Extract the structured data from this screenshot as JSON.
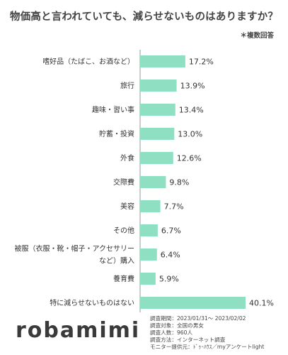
{
  "header": {
    "title": "物価高と言われていても、減らせないものはありますか？",
    "note": "＊複数回答"
  },
  "chart_data": {
    "type": "bar",
    "orientation": "horizontal",
    "categories": [
      "嗜好品（たばこ、お酒など）",
      "旅行",
      "趣味・習い事",
      "貯蓄・投資",
      "外食",
      "交際費",
      "美容",
      "その他",
      "被服（衣服・靴・帽子・アクセサリー など）購入",
      "養育費",
      "特に減らせないものはない"
    ],
    "category_lines": [
      [
        "嗜好品（たばこ、お酒など）"
      ],
      [
        "旅行"
      ],
      [
        "趣味・習い事"
      ],
      [
        "貯蓄・投資"
      ],
      [
        "外食"
      ],
      [
        "交際費"
      ],
      [
        "美容"
      ],
      [
        "その他"
      ],
      [
        "被服（衣服・靴・帽子・アクセサリー",
        "など）購入"
      ],
      [
        "養育費"
      ],
      [
        "特に減らせないものはない"
      ]
    ],
    "values": [
      17.2,
      13.9,
      13.4,
      13.0,
      12.6,
      9.8,
      7.7,
      6.7,
      6.4,
      5.9,
      40.1
    ],
    "value_labels": [
      "17.2%",
      "13.9%",
      "13.4%",
      "13.0%",
      "12.6%",
      "9.8%",
      "7.7%",
      "6.7%",
      "6.4%",
      "5.9%",
      "40.1%"
    ],
    "xlim": [
      0,
      40.1
    ],
    "bar_color": "#8fdfc2",
    "axis_color": "#999999",
    "grid": false
  },
  "footer": {
    "logo": "robamimi",
    "survey_lines": [
      "調査期間：2023/01/31～ 2023/02/02",
      "調査対象：全国の男女",
      "調査人数：960人",
      "調査方法：インターネット調査",
      "モニター提供元：ﾄﾞｩ･ﾊｳｽ／myアンケートlight"
    ]
  }
}
